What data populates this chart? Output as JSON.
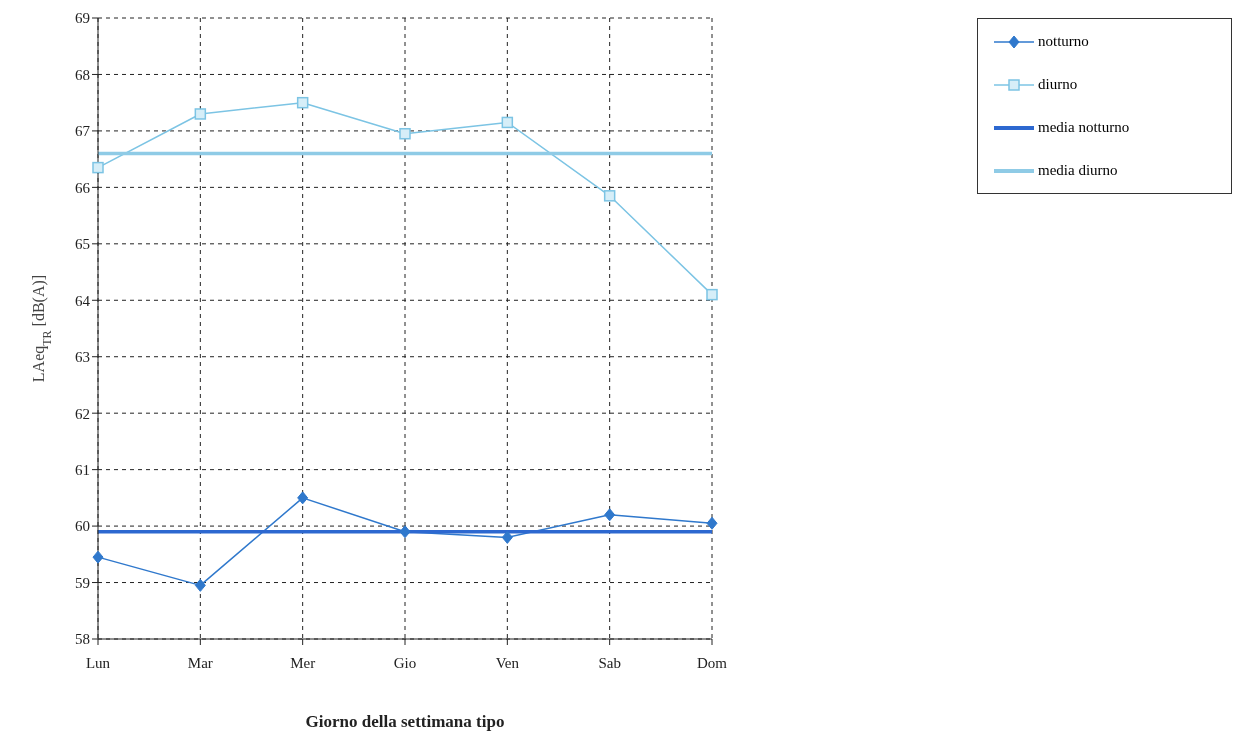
{
  "chart_data": {
    "type": "line",
    "xlabel": "Giorno della settimana tipo",
    "ylabel": "LAeq$_{TR}$ [dB(A)]",
    "categories": [
      "Lun",
      "Mar",
      "Mer",
      "Gio",
      "Ven",
      "Sab",
      "Dom"
    ],
    "series": [
      {
        "name": "notturno",
        "color": "#2f78cc",
        "marker": "diamond",
        "values": [
          59.45,
          58.95,
          60.5,
          59.9,
          59.8,
          60.2,
          60.05
        ]
      },
      {
        "name": "diurno",
        "color": "#7cc4e4",
        "marker": "square",
        "values": [
          66.35,
          67.3,
          67.5,
          66.95,
          67.15,
          65.85,
          64.1
        ]
      },
      {
        "name": "media notturno",
        "color": "#2d68d0",
        "marker": "none",
        "values": [
          59.9,
          59.9,
          59.9,
          59.9,
          59.9,
          59.9,
          59.9
        ]
      },
      {
        "name": "media diurno",
        "color": "#8fcbe6",
        "marker": "none",
        "values": [
          66.6,
          66.6,
          66.6,
          66.6,
          66.6,
          66.6,
          66.6
        ]
      }
    ],
    "ylim": [
      58,
      69
    ],
    "yticks": [
      58,
      59,
      60,
      61,
      62,
      63,
      64,
      65,
      66,
      67,
      68,
      69
    ],
    "grid": true,
    "legend": "top right",
    "line_style": "solid"
  }
}
